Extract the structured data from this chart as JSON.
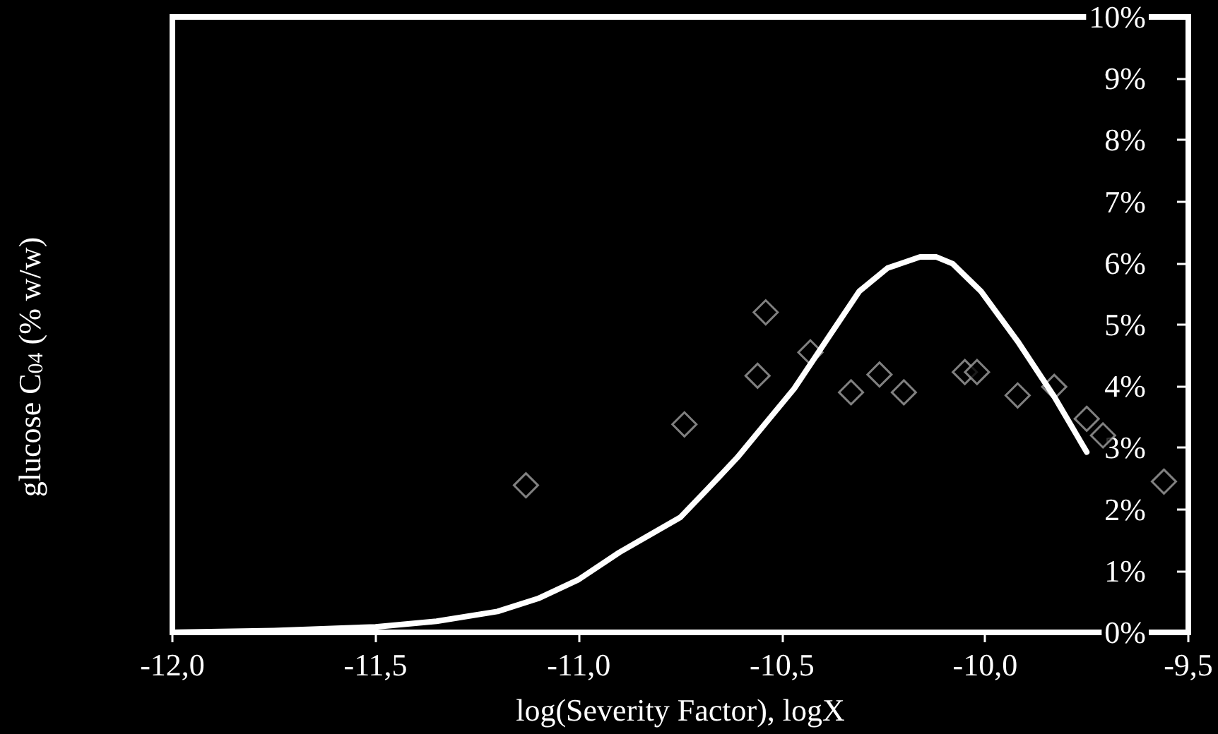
{
  "chart_data": {
    "type": "scatter",
    "xlabel": "log(Severity Factor), logX",
    "ylabel": "glucose C$_{04}$ (% w/w)",
    "xlim": [
      -12,
      -9.5
    ],
    "xticks": [
      {
        "value": -12,
        "label": "-12,0"
      },
      {
        "value": -11.5,
        "label": "-11,5"
      },
      {
        "value": -11,
        "label": "-11,0"
      },
      {
        "value": -10.5,
        "label": "-10,5"
      },
      {
        "value": -10,
        "label": "-10,0"
      },
      {
        "value": -9.5,
        "label": "-9,5"
      }
    ],
    "ylim": [
      0,
      10
    ],
    "yticks": [
      {
        "value": 0,
        "label": "0%"
      },
      {
        "value": 1,
        "label": "1%"
      },
      {
        "value": 2,
        "label": "2%"
      },
      {
        "value": 3,
        "label": "3%"
      },
      {
        "value": 4,
        "label": "4%"
      },
      {
        "value": 5,
        "label": "5%"
      },
      {
        "value": 6,
        "label": "6%"
      },
      {
        "value": 7,
        "label": "7%"
      },
      {
        "value": 8,
        "label": "8%"
      },
      {
        "value": 9,
        "label": "9%"
      },
      {
        "value": 10,
        "label": "10%"
      }
    ],
    "grid": false,
    "series": [
      {
        "marker": "diamond",
        "color": "#a0a0a0",
        "x": [
          -11.13,
          -10.74,
          -10.56,
          -10.54,
          -10.43,
          -10.33,
          -10.26,
          -10.2,
          -10.05,
          -10.02,
          -9.92,
          -9.83,
          -9.75,
          -9.71,
          -9.56
        ],
        "values": [
          2.39,
          3.38,
          4.17,
          5.2,
          4.55,
          3.9,
          4.19,
          3.9,
          4.23,
          4.23,
          3.85,
          3.99,
          3.47,
          3.2,
          2.45
        ]
      },
      {
        "type": "line",
        "marker": "none",
        "line_style": "solid",
        "color": "#ffffff",
        "x": [
          -12,
          -11.75,
          -11.5,
          -11.35,
          -11.2,
          -11.1,
          -11,
          -10.9,
          -10.75,
          -10.68,
          -10.61,
          -10.54,
          -10.47,
          -10.39,
          -10.31,
          -10.24,
          -10.16,
          -10.12,
          -10.08,
          -10.01,
          -9.92,
          -9.83,
          -9.75
        ],
        "values": [
          0,
          0.03,
          0.09,
          0.18,
          0.34,
          0.55,
          0.86,
          1.3,
          1.87,
          2.35,
          2.84,
          3.4,
          3.96,
          4.75,
          5.54,
          5.92,
          6.1,
          6.1,
          5.99,
          5.54,
          4.73,
          3.83,
          2.93
        ]
      }
    ]
  }
}
